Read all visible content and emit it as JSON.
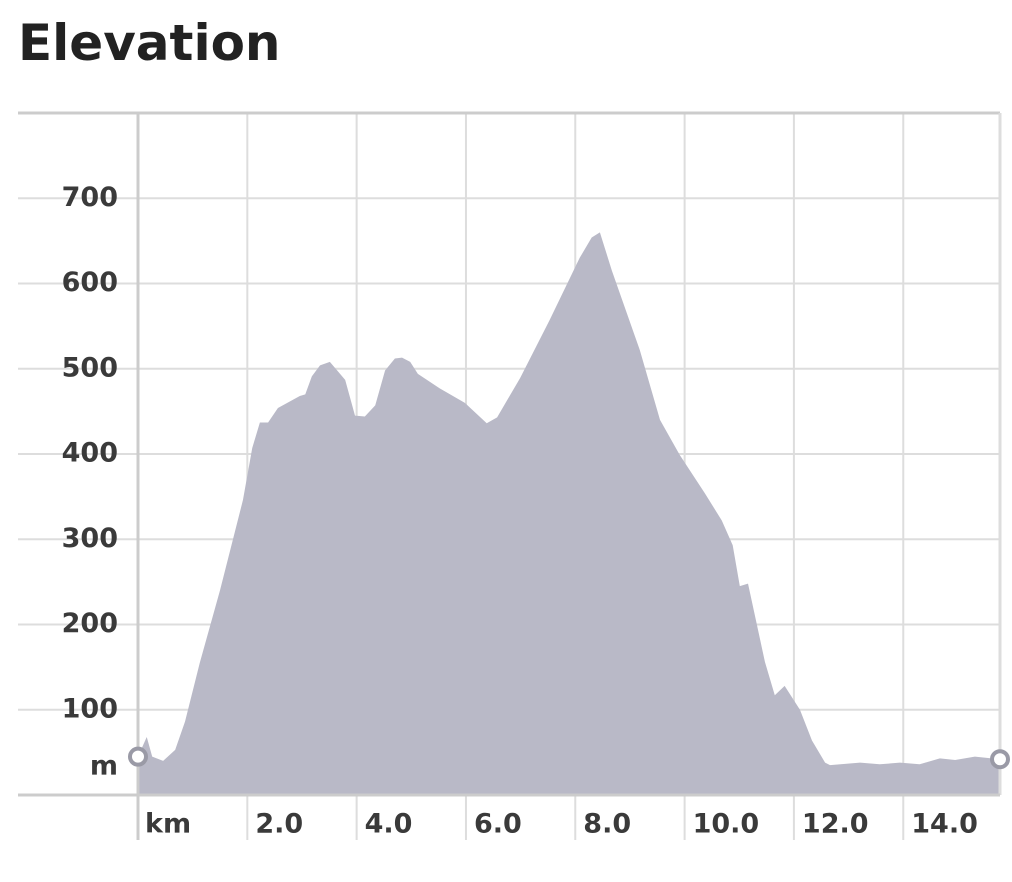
{
  "chart_data": {
    "type": "area",
    "title": "Elevation",
    "x_label": "km",
    "y_label": "m",
    "color": "#b9b9c7",
    "grid": true,
    "xlim": [
      0,
      15.77
    ],
    "ylim": [
      0,
      800
    ],
    "xticks": [
      {
        "value": 2,
        "label": "2.0"
      },
      {
        "value": 4,
        "label": "4.0"
      },
      {
        "value": 6,
        "label": "6.0"
      },
      {
        "value": 8,
        "label": "8.0"
      },
      {
        "value": 10,
        "label": "10.0"
      },
      {
        "value": 12,
        "label": "12.0"
      },
      {
        "value": 14,
        "label": "14.0"
      }
    ],
    "yticks": [
      100,
      200,
      300,
      400,
      500,
      600,
      700
    ],
    "x": [
      0,
      0.16,
      0.26,
      0.46,
      0.68,
      0.86,
      1.13,
      1.5,
      1.92,
      2.09,
      2.23,
      2.38,
      2.56,
      2.96,
      3.06,
      3.18,
      3.33,
      3.51,
      3.79,
      3.97,
      4.15,
      4.34,
      4.52,
      4.7,
      4.83,
      4.98,
      5.12,
      5.52,
      5.98,
      6.38,
      6.57,
      6.99,
      7.53,
      8.08,
      8.3,
      8.45,
      8.67,
      9.18,
      9.55,
      9.91,
      10.37,
      10.68,
      10.88,
      11.01,
      11.16,
      11.47,
      11.65,
      11.83,
      12.11,
      12.33,
      12.57,
      12.66,
      13.21,
      13.57,
      13.94,
      14.3,
      14.67,
      14.95,
      15.31,
      15.77
    ],
    "values": [
      45,
      68,
      45,
      40,
      53,
      86,
      155,
      240,
      346,
      407,
      437,
      437,
      454,
      468,
      470,
      491,
      504,
      508,
      487,
      445,
      444,
      457,
      498,
      512,
      513,
      508,
      494,
      477,
      460,
      436,
      443,
      489,
      557,
      630,
      654,
      660,
      615,
      522,
      440,
      399,
      354,
      322,
      293,
      245,
      248,
      156,
      117,
      128,
      100,
      64,
      38,
      35,
      38,
      36,
      38,
      36,
      43,
      41,
      45,
      42
    ]
  }
}
